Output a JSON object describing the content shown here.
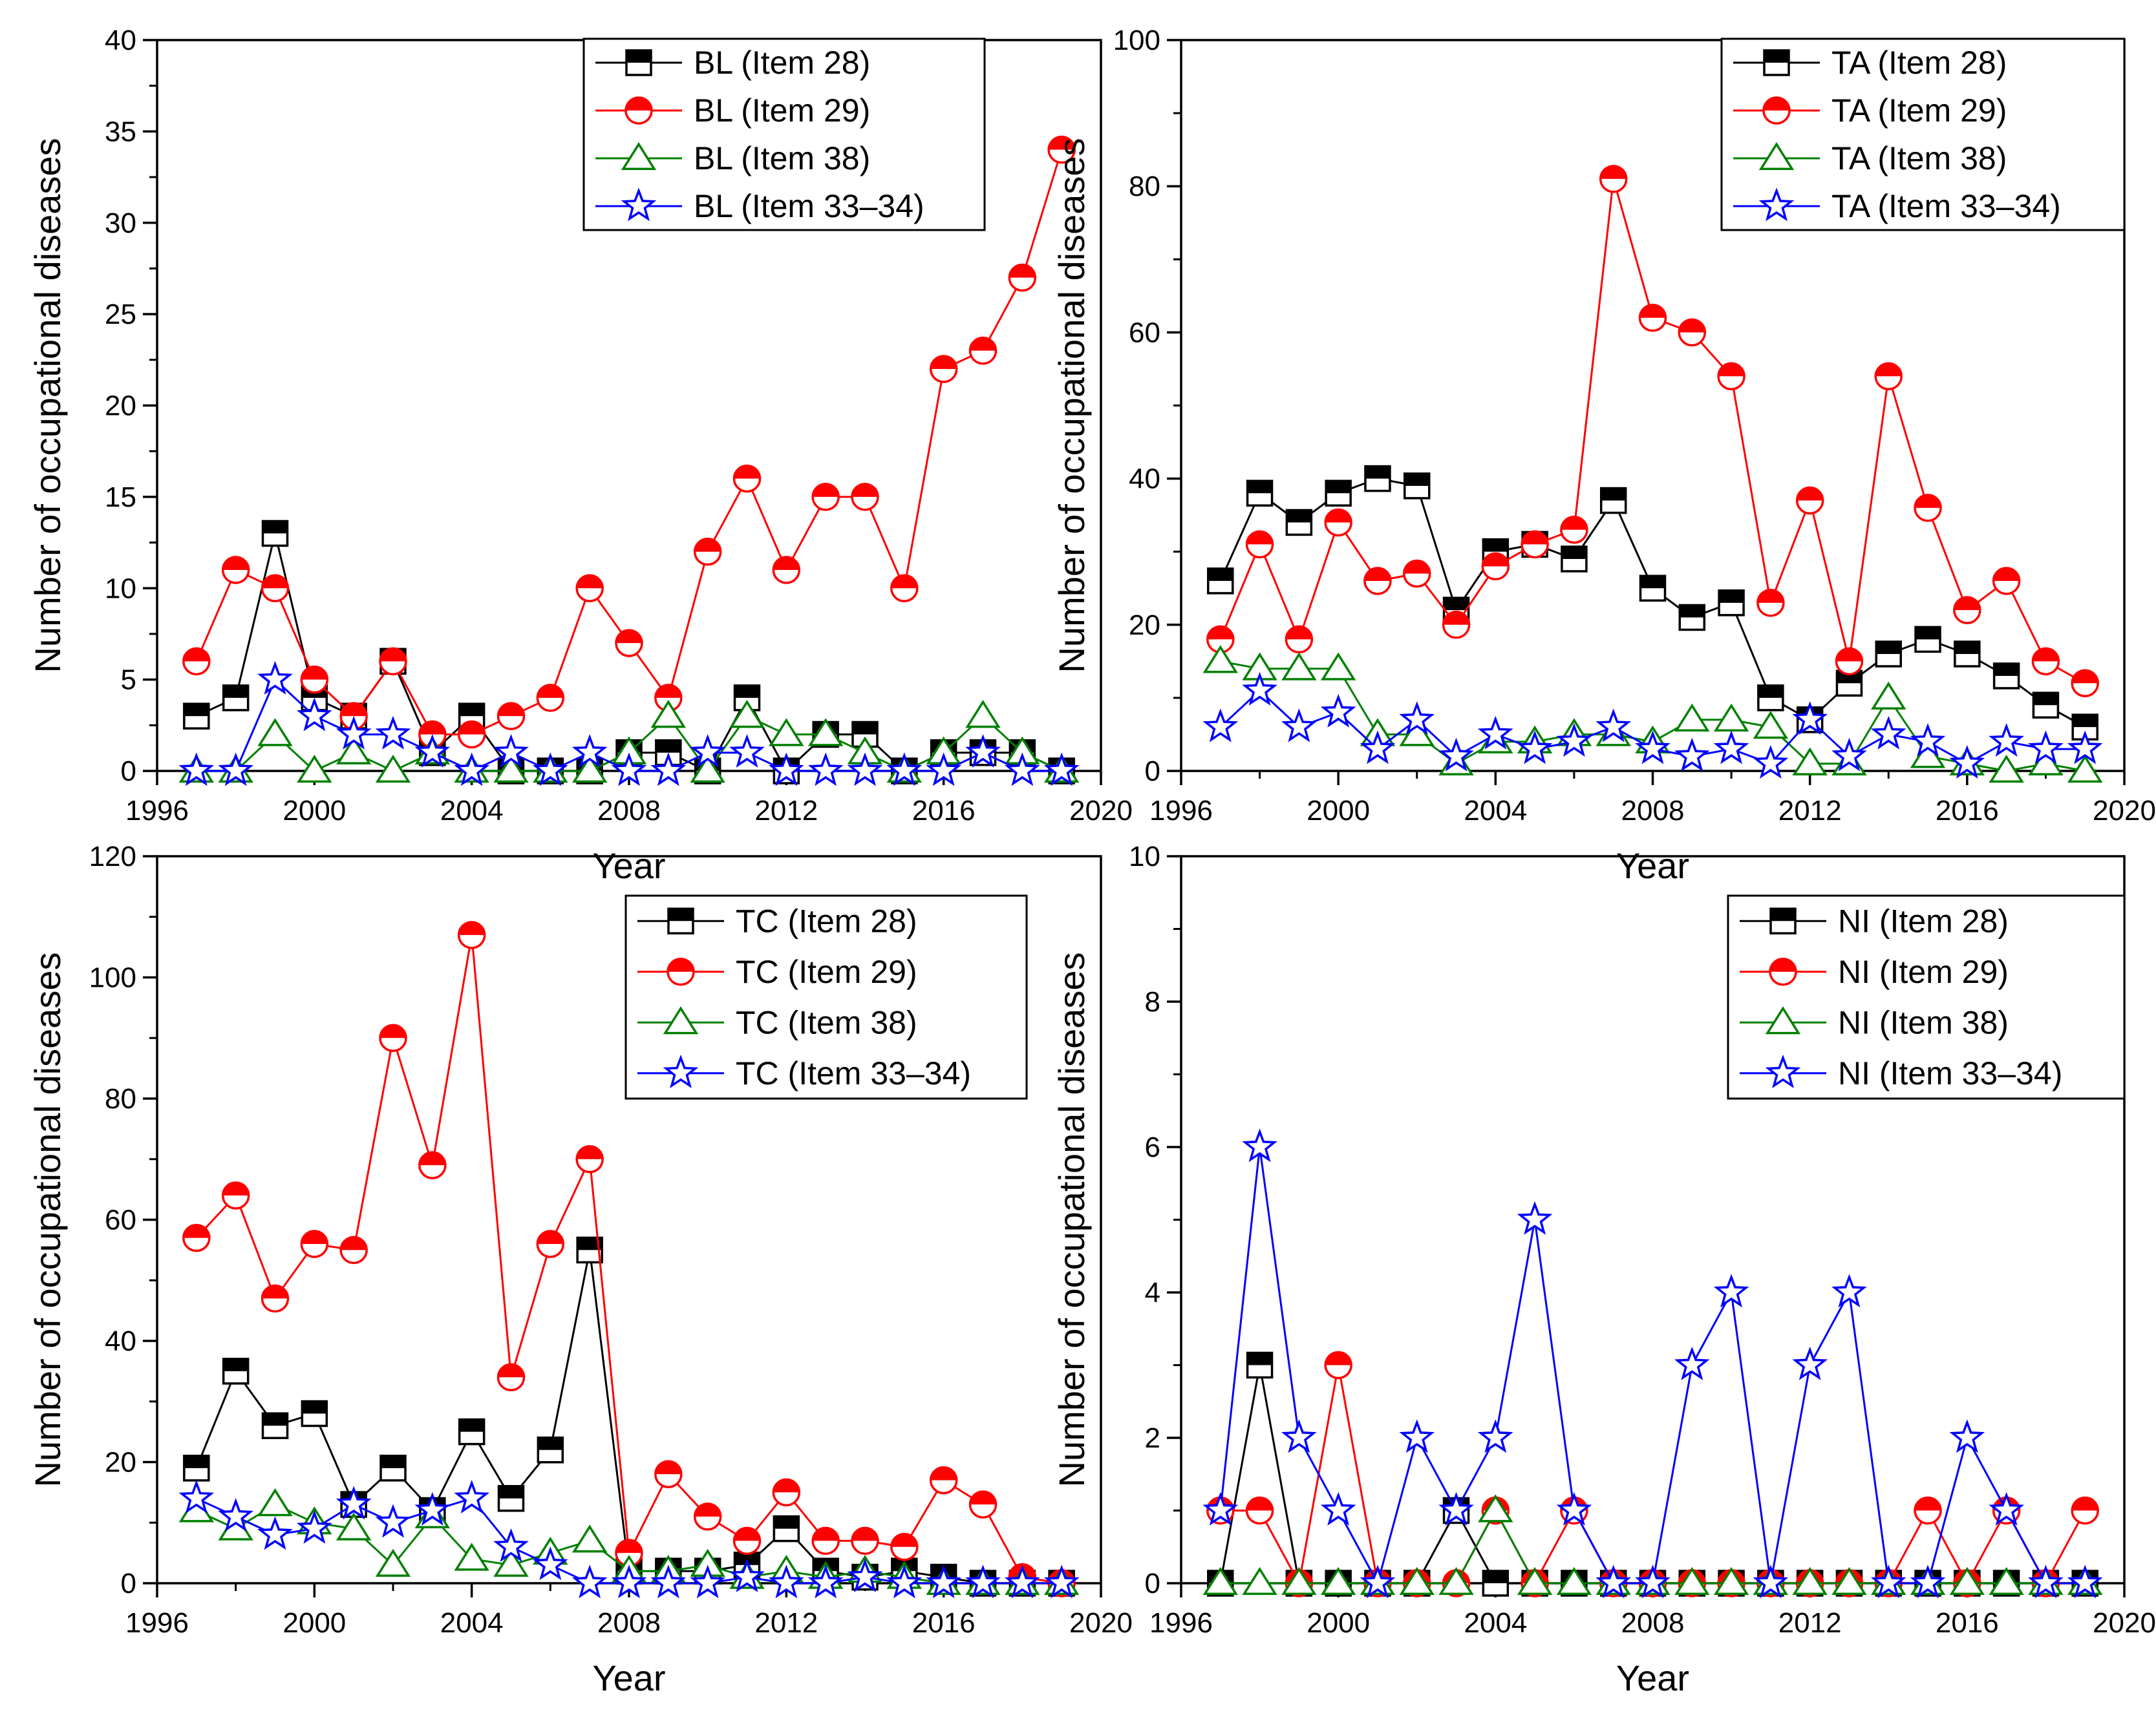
{
  "chart_data": [
    {
      "type": "line",
      "xlabel": "Year",
      "ylabel": "Number of occupational diseases",
      "xlim": [
        1996,
        2020
      ],
      "ylim": [
        0,
        40
      ],
      "xticks": [
        1996,
        2000,
        2004,
        2008,
        2012,
        2016,
        2020
      ],
      "yticks": [
        0,
        5,
        10,
        15,
        20,
        25,
        30,
        35,
        40
      ],
      "legend_position": "top-right",
      "x": [
        1997,
        1998,
        1999,
        2000,
        2001,
        2002,
        2003,
        2004,
        2005,
        2006,
        2007,
        2008,
        2009,
        2010,
        2011,
        2012,
        2013,
        2014,
        2015,
        2016,
        2017,
        2018,
        2019
      ],
      "series": [
        {
          "name": "BL (Item 28)",
          "marker": "square",
          "color": "#000000",
          "values": [
            3,
            4,
            13,
            4,
            3,
            6,
            1,
            3,
            0,
            0,
            0,
            1,
            1,
            0,
            4,
            0,
            2,
            2,
            0,
            1,
            1,
            1,
            0
          ]
        },
        {
          "name": "BL (Item 29)",
          "marker": "circle",
          "color": "#ff0000",
          "values": [
            6,
            11,
            10,
            5,
            3,
            6,
            2,
            2,
            3,
            4,
            10,
            7,
            4,
            12,
            16,
            11,
            15,
            15,
            10,
            22,
            23,
            27,
            34
          ]
        },
        {
          "name": "BL (Item 38)",
          "marker": "triangle",
          "color": "#008000",
          "values": [
            0,
            0,
            2,
            0,
            1,
            0,
            1,
            0,
            0,
            0,
            0,
            1,
            3,
            0,
            3,
            2,
            2,
            1,
            0,
            1,
            3,
            1,
            0
          ]
        },
        {
          "name": "BL (Item 33–34)",
          "marker": "star",
          "color": "#0000ff",
          "values": [
            0,
            0,
            5,
            3,
            2,
            2,
            1,
            0,
            1,
            0,
            1,
            0,
            0,
            1,
            1,
            0,
            0,
            0,
            0,
            0,
            1,
            0,
            0
          ]
        }
      ]
    },
    {
      "type": "line",
      "xlabel": "Year",
      "ylabel": "Number of occupational diseases",
      "xlim": [
        1996,
        2020
      ],
      "ylim": [
        0,
        100
      ],
      "xticks": [
        1996,
        2000,
        2004,
        2008,
        2012,
        2016,
        2020
      ],
      "yticks": [
        0,
        20,
        40,
        60,
        80,
        100
      ],
      "legend_position": "top-right",
      "x": [
        1997,
        1998,
        1999,
        2000,
        2001,
        2002,
        2003,
        2004,
        2005,
        2006,
        2007,
        2008,
        2009,
        2010,
        2011,
        2012,
        2013,
        2014,
        2015,
        2016,
        2017,
        2018,
        2019
      ],
      "series": [
        {
          "name": "TA (Item 28)",
          "marker": "square",
          "color": "#000000",
          "values": [
            26,
            38,
            34,
            38,
            40,
            39,
            22,
            30,
            31,
            29,
            37,
            25,
            21,
            23,
            10,
            7,
            12,
            16,
            18,
            16,
            13,
            9,
            6
          ]
        },
        {
          "name": "TA (Item 29)",
          "marker": "circle",
          "color": "#ff0000",
          "values": [
            18,
            31,
            18,
            34,
            26,
            27,
            20,
            28,
            31,
            33,
            81,
            62,
            60,
            54,
            23,
            37,
            15,
            54,
            36,
            22,
            26,
            15,
            12
          ]
        },
        {
          "name": "TA (Item 38)",
          "marker": "triangle",
          "color": "#008000",
          "values": [
            15,
            14,
            14,
            14,
            5,
            5,
            1,
            4,
            4,
            5,
            5,
            4,
            7,
            7,
            6,
            1,
            1,
            10,
            2,
            1,
            0,
            1,
            0
          ]
        },
        {
          "name": "TA (Item 33–34)",
          "marker": "star",
          "color": "#0000ff",
          "values": [
            6,
            11,
            6,
            8,
            3,
            7,
            2,
            5,
            3,
            4,
            6,
            3,
            2,
            3,
            1,
            7,
            2,
            5,
            4,
            1,
            4,
            3,
            3
          ]
        }
      ]
    },
    {
      "type": "line",
      "xlabel": "Year",
      "ylabel": "Number of occupational diseases",
      "xlim": [
        1996,
        2020
      ],
      "ylim": [
        0,
        120
      ],
      "xticks": [
        1996,
        2000,
        2004,
        2008,
        2012,
        2016,
        2020
      ],
      "yticks": [
        0,
        20,
        40,
        60,
        80,
        100,
        120
      ],
      "legend_position": "top-right",
      "x": [
        1997,
        1998,
        1999,
        2000,
        2001,
        2002,
        2003,
        2004,
        2005,
        2006,
        2007,
        2008,
        2009,
        2010,
        2011,
        2012,
        2013,
        2014,
        2015,
        2016,
        2017,
        2018,
        2019
      ],
      "series": [
        {
          "name": "TC (Item 28)",
          "marker": "square",
          "color": "#000000",
          "values": [
            19,
            35,
            26,
            28,
            13,
            19,
            12,
            25,
            14,
            22,
            55,
            2,
            2,
            2,
            3,
            9,
            2,
            1,
            2,
            1,
            0,
            0,
            0
          ]
        },
        {
          "name": "TC (Item 29)",
          "marker": "circle",
          "color": "#ff0000",
          "values": [
            57,
            64,
            47,
            56,
            55,
            90,
            69,
            107,
            34,
            56,
            70,
            5,
            18,
            11,
            7,
            15,
            7,
            7,
            6,
            17,
            13,
            1,
            0
          ]
        },
        {
          "name": "TC (Item 38)",
          "marker": "triangle",
          "color": "#008000",
          "values": [
            12,
            9,
            13,
            10,
            9,
            3,
            11,
            4,
            3,
            5,
            7,
            2,
            2,
            3,
            1,
            2,
            1,
            2,
            1,
            0,
            0,
            0,
            0
          ]
        },
        {
          "name": "TC (Item 33–34)",
          "marker": "star",
          "color": "#0000ff",
          "values": [
            14,
            11,
            8,
            9,
            13,
            10,
            12,
            14,
            6,
            3,
            0,
            0,
            0,
            0,
            1,
            0,
            0,
            1,
            0,
            0,
            0,
            0,
            0
          ]
        }
      ]
    },
    {
      "type": "line",
      "xlabel": "Year",
      "ylabel": "Number of occupational diseases",
      "xlim": [
        1996,
        2020
      ],
      "ylim": [
        0,
        10
      ],
      "xticks": [
        1996,
        2000,
        2004,
        2008,
        2012,
        2016,
        2020
      ],
      "yticks": [
        0,
        2,
        4,
        6,
        8,
        10
      ],
      "legend_position": "top-right",
      "x": [
        1997,
        1998,
        1999,
        2000,
        2001,
        2002,
        2003,
        2004,
        2005,
        2006,
        2007,
        2008,
        2009,
        2010,
        2011,
        2012,
        2013,
        2014,
        2015,
        2016,
        2017,
        2018,
        2019
      ],
      "series": [
        {
          "name": "NI (Item 28)",
          "marker": "square",
          "color": "#000000",
          "values": [
            0,
            3,
            0,
            0,
            0,
            0,
            1,
            0,
            0,
            0,
            0,
            0,
            0,
            0,
            0,
            0,
            0,
            0,
            0,
            0,
            0,
            0,
            0
          ]
        },
        {
          "name": "NI (Item 29)",
          "marker": "circle",
          "color": "#ff0000",
          "values": [
            1,
            1,
            0,
            3,
            0,
            0,
            0,
            1,
            0,
            1,
            0,
            0,
            0,
            0,
            0,
            0,
            0,
            0,
            1,
            0,
            1,
            0,
            1
          ]
        },
        {
          "name": "NI (Item 38)",
          "marker": "triangle",
          "color": "#008000",
          "values": [
            0,
            0,
            0,
            0,
            0,
            0,
            0,
            1,
            0,
            0,
            0,
            0,
            0,
            0,
            0,
            0,
            0,
            0,
            0,
            0,
            0,
            0,
            0
          ]
        },
        {
          "name": "NI (Item 33–34)",
          "marker": "star",
          "color": "#0000ff",
          "values": [
            1,
            6,
            2,
            1,
            0,
            2,
            1,
            2,
            5,
            1,
            0,
            0,
            3,
            4,
            0,
            3,
            4,
            0,
            0,
            2,
            1,
            0,
            0
          ]
        }
      ]
    }
  ]
}
